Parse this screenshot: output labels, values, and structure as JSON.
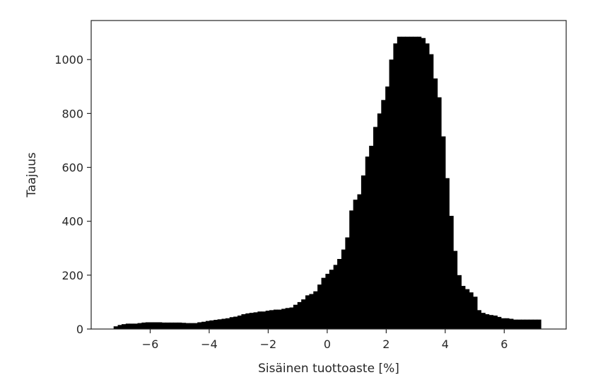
{
  "chart_data": {
    "type": "bar",
    "title": "",
    "xlabel": "Sisäinen tuottoaste [%]",
    "ylabel": "Taajuus",
    "xlim": [
      -8.0,
      8.1
    ],
    "ylim": [
      0,
      1145
    ],
    "bar_color": "#000000",
    "grid": false,
    "x_ticks": [
      {
        "value": -6,
        "label": "−6"
      },
      {
        "value": -4,
        "label": "−4"
      },
      {
        "value": -2,
        "label": "−2"
      },
      {
        "value": 0,
        "label": "0"
      },
      {
        "value": 2,
        "label": "2"
      },
      {
        "value": 4,
        "label": "4"
      },
      {
        "value": 6,
        "label": "6"
      }
    ],
    "y_ticks": [
      {
        "value": 0,
        "label": "0"
      },
      {
        "value": 200,
        "label": "200"
      },
      {
        "value": 400,
        "label": "400"
      },
      {
        "value": 600,
        "label": "600"
      },
      {
        "value": 800,
        "label": "800"
      },
      {
        "value": 1000,
        "label": "1000"
      }
    ],
    "bin_edges": [
      -7.24,
      -7.1,
      -6.97,
      -6.83,
      -6.7,
      -6.56,
      -6.43,
      -6.29,
      -6.16,
      -6.02,
      -5.88,
      -5.75,
      -5.61,
      -5.48,
      -5.34,
      -5.21,
      -5.07,
      -4.94,
      -4.8,
      -4.67,
      -4.53,
      -4.4,
      -4.26,
      -4.12,
      -3.99,
      -3.85,
      -3.72,
      -3.58,
      -3.45,
      -3.31,
      -3.18,
      -3.04,
      -2.91,
      -2.77,
      -2.64,
      -2.5,
      -2.36,
      -2.23,
      -2.09,
      -1.96,
      -1.82,
      -1.69,
      -1.55,
      -1.42,
      -1.28,
      -1.15,
      -1.01,
      -0.88,
      -0.74,
      -0.61,
      -0.47,
      -0.33,
      -0.2,
      -0.06,
      0.07,
      0.21,
      0.34,
      0.48,
      0.61,
      0.75,
      0.88,
      1.02,
      1.15,
      1.29,
      1.42,
      1.56,
      1.7,
      1.83,
      1.97,
      2.1,
      2.24,
      2.37,
      2.51,
      2.64,
      2.78,
      2.91,
      3.05,
      3.18,
      3.32,
      3.45,
      3.59,
      3.73,
      3.86,
      4.0,
      4.13,
      4.27,
      4.4,
      4.54,
      4.67,
      4.81,
      4.94,
      5.08,
      5.21,
      5.35,
      5.48,
      5.62,
      5.76,
      5.89,
      6.03,
      6.16,
      6.3,
      6.43,
      6.57,
      6.7,
      6.84,
      6.97,
      7.11,
      7.24
    ],
    "values": [
      10,
      15,
      18,
      20,
      20,
      20,
      22,
      24,
      25,
      25,
      25,
      25,
      24,
      24,
      24,
      24,
      24,
      23,
      22,
      22,
      22,
      25,
      27,
      30,
      32,
      34,
      36,
      38,
      40,
      44,
      46,
      50,
      55,
      58,
      60,
      62,
      65,
      65,
      68,
      70,
      72,
      72,
      75,
      78,
      80,
      90,
      100,
      110,
      125,
      130,
      140,
      165,
      190,
      205,
      220,
      238,
      260,
      295,
      340,
      440,
      480,
      500,
      570,
      640,
      680,
      750,
      800,
      850,
      900,
      1000,
      1060,
      1085,
      1085,
      1085,
      1085,
      1085,
      1085,
      1080,
      1060,
      1020,
      930,
      860,
      715,
      560,
      420,
      290,
      200,
      160,
      148,
      136,
      120,
      70,
      60,
      55,
      52,
      50,
      45,
      40,
      40,
      38,
      35,
      35,
      35,
      35,
      35,
      35,
      35
    ]
  }
}
